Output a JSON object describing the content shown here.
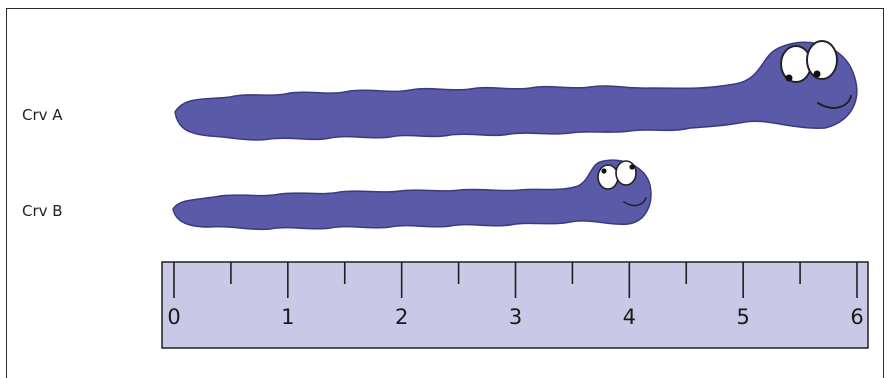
{
  "worms": [
    {
      "label": "Crv A",
      "length": 6
    },
    {
      "label": "Crv B",
      "length": 4.2
    }
  ],
  "ruler": {
    "min": 0,
    "max": 6,
    "tick_labels": [
      "0",
      "1",
      "2",
      "3",
      "4",
      "5",
      "6"
    ]
  },
  "colors": {
    "worm": "#5a5aa8",
    "ruler_fill": "#c9c9e7",
    "outline": "#1f1f1f"
  }
}
